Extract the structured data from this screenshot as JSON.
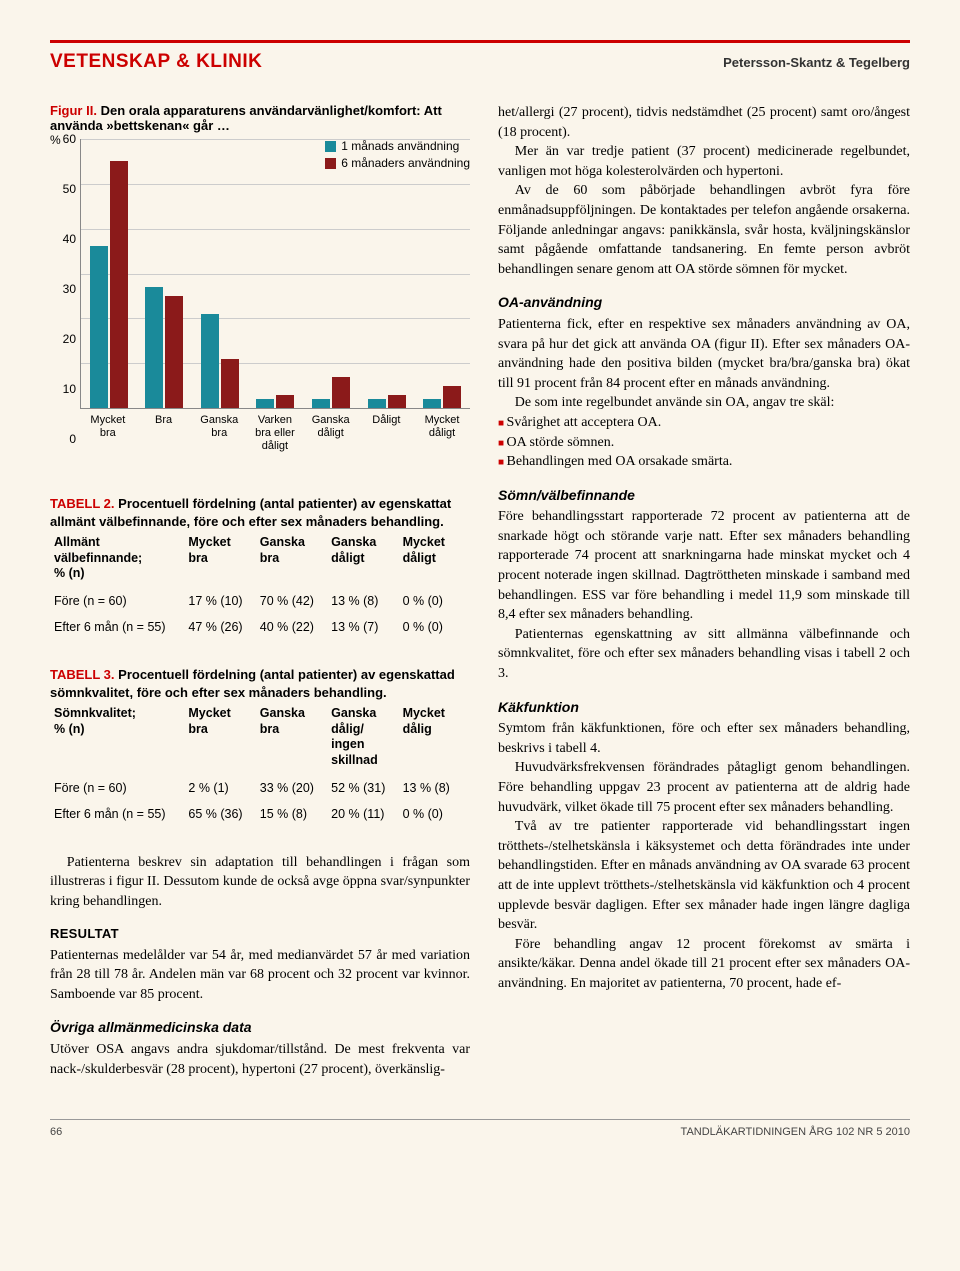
{
  "header": {
    "section": "VETENSKAP & KLINIK",
    "authors": "Petersson-Skantz & Tegelberg"
  },
  "figure": {
    "label": "Figur II.",
    "title": "Den orala apparaturens användarvänlighet/komfort: Att använda »bettskenan« går …",
    "y_unit": "%",
    "ylim": [
      0,
      60
    ],
    "yticks": [
      0,
      10,
      20,
      30,
      40,
      50,
      60
    ],
    "legend": [
      {
        "color": "#1a8a9a",
        "label": "1 månads användning"
      },
      {
        "color": "#8b1a1a",
        "label": "6 månaders användning"
      }
    ],
    "categories": [
      "Mycket bra",
      "Bra",
      "Ganska bra",
      "Varken bra eller dåligt",
      "Ganska dåligt",
      "Dåligt",
      "Mycket dåligt"
    ],
    "series1": [
      36,
      27,
      21,
      2,
      2,
      2,
      2
    ],
    "series2": [
      55,
      25,
      11,
      3,
      7,
      3,
      5
    ],
    "grid_color": "#cccccc",
    "axis_color": "#888888"
  },
  "table2": {
    "label": "TABELL 2.",
    "caption": "Procentuell fördelning (antal patienter) av egenskattat allmänt välbefinnande, före och efter sex månaders behandling.",
    "columns": [
      "Allmänt välbefinnande; % (n)",
      "Mycket bra",
      "Ganska bra",
      "Ganska dåligt",
      "Mycket dåligt"
    ],
    "rows": [
      [
        "Före (n = 60)",
        "17 % (10)",
        "70 % (42)",
        "13 % (8)",
        "0 % (0)"
      ],
      [
        "Efter 6 mån (n = 55)",
        "47 % (26)",
        "40 % (22)",
        "13 % (7)",
        "0 % (0)"
      ]
    ]
  },
  "table3": {
    "label": "TABELL 3.",
    "caption": "Procentuell fördelning (antal patienter) av egenskattad sömnkvalitet, före och efter sex månaders behandling.",
    "columns": [
      "Sömnkvalitet; % (n)",
      "Mycket bra",
      "Ganska bra",
      "Ganska dålig/ ingen skillnad",
      "Mycket dålig"
    ],
    "rows": [
      [
        "Före (n = 60)",
        "2 % (1)",
        "33 % (20)",
        "52 % (31)",
        "13 % (8)"
      ],
      [
        "Efter 6 mån (n = 55)",
        "65 % (36)",
        "15 % (8)",
        "20 % (11)",
        "0 % (0)"
      ]
    ]
  },
  "left_text": {
    "p1": "Patienterna beskrev sin adaptation till behandlingen i frågan som illustreras i figur II. Dessutom kunde de också avge öppna svar/synpunkter kring behandlingen.",
    "h1": "RESULTAT",
    "p2": "Patienternas medelålder var 54 år, med medianvärdet 57 år med variation från 28 till 78 år. Andelen män var 68 procent och 32 procent var kvinnor. Samboende var 85 procent.",
    "h2": "Övriga allmänmedicinska data",
    "p3": "Utöver OSA angavs andra sjukdomar/tillstånd. De mest frekventa var nack-/skulderbesvär (28 procent), hypertoni (27 procent), överkänslig-"
  },
  "right_text": {
    "p1": "het/allergi (27 procent), tidvis nedstämdhet (25 procent) samt oro/ångest (18 procent).",
    "p2": "Mer än var tredje patient (37 procent) medicinerade regelbundet, vanligen mot höga kolesterolvärden och hypertoni.",
    "p3": "Av de 60 som påbörjade behandlingen avbröt fyra före enmånadsuppföljningen. De kontaktades per telefon angående orsakerna. Följande anledningar angavs: panikkänsla, svår hosta, kväljningskänslor samt pågående omfattande tandsanering. En femte person avbröt behandlingen senare genom att OA störde sömnen för mycket.",
    "h1": "OA-användning",
    "p4": "Patienterna fick, efter en respektive sex månaders användning av OA, svara på hur det gick att använda OA (figur II). Efter sex månaders OA-användning hade den positiva bilden (mycket bra/bra/ganska bra) ökat till 91 procent från 84 procent efter en månads användning.",
    "p5": "De som inte regelbundet använde sin OA, angav tre skäl:",
    "bullets": [
      "Svårighet att acceptera OA.",
      "OA störde sömnen.",
      "Behandlingen med OA orsakade smärta."
    ],
    "h2": "Sömn/välbefinnande",
    "p6": "Före behandlingsstart rapporterade 72 procent av patienterna att de snarkade högt och störande varje natt. Efter sex månaders behandling rapporterade 74 procent att snarkningarna hade minskat mycket och 4 procent noterade ingen skillnad. Dagtröttheten minskade i samband med behandlingen. ESS var före behandling i medel 11,9 som minskade till 8,4 efter sex månaders behandling.",
    "p7": "Patienternas egenskattning av sitt allmänna välbefinnande och sömnkvalitet, före och efter sex månaders behandling visas i tabell 2 och 3.",
    "h3": "Käkfunktion",
    "p8": "Symtom från käkfunktionen, före och efter sex månaders behandling, beskrivs i tabell 4.",
    "p9": "Huvudvärksfrekvensen förändrades påtagligt genom behandlingen. Före behandling uppgav 23 procent av patienterna att de aldrig hade huvudvärk, vilket ökade till 75 procent efter sex månaders behandling.",
    "p10": "Två av tre patienter rapporterade vid behandlingsstart ingen trötthets-/stelhetskänsla i käksystemet och detta förändrades inte under behandlingstiden. Efter en månads användning av OA svarade 63 procent att de inte upplevt trötthets-/stelhetskänsla vid käkfunktion och 4 procent upplevde besvär dagligen. Efter sex månader hade ingen längre dagliga besvär.",
    "p11": "Före behandling angav 12 procent förekomst av smärta i ansikte/käkar. Denna andel ökade till 21 procent efter sex månaders OA-användning. En majoritet av patienterna, 70 procent, hade ef-"
  },
  "footer": {
    "page": "66",
    "journal": "TANDLÄKARTIDNINGEN ÅRG 102 NR 5 2010"
  }
}
